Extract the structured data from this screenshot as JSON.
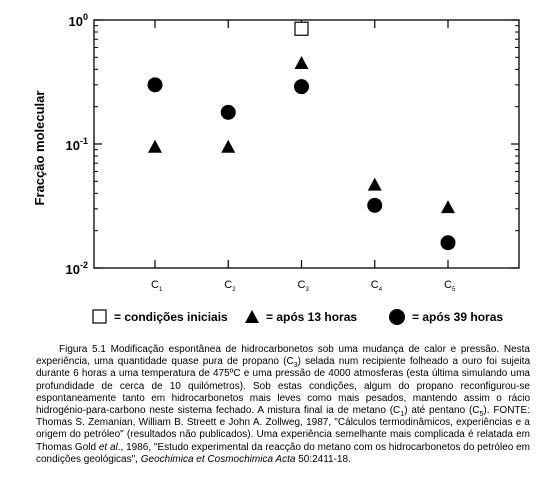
{
  "chart_data": {
    "type": "scatter",
    "title": "",
    "xlabel": "",
    "ylabel": "Fracção molecular",
    "y_scale": "log",
    "ylim": [
      0.01,
      1
    ],
    "y_ticks": [
      {
        "base": "10",
        "exp": "0",
        "value": 1
      },
      {
        "base": "10",
        "exp": "-1",
        "value": 0.1
      },
      {
        "base": "10",
        "exp": "-2",
        "value": 0.01
      }
    ],
    "categories": [
      "C1",
      "C2",
      "C3",
      "C4",
      "C5"
    ],
    "category_labels": [
      {
        "main": "C",
        "sub": "1"
      },
      {
        "main": "C",
        "sub": "2"
      },
      {
        "main": "C",
        "sub": "3"
      },
      {
        "main": "C",
        "sub": "4"
      },
      {
        "main": "C",
        "sub": "5"
      }
    ],
    "grid": false,
    "legend_position": "bottom",
    "series": [
      {
        "name": "= condições iniciais",
        "marker": "open-square",
        "values": [
          null,
          null,
          0.85,
          null,
          null
        ]
      },
      {
        "name": "= após 13 horas",
        "marker": "triangle",
        "values": [
          0.095,
          0.095,
          0.45,
          0.047,
          0.031
        ]
      },
      {
        "name": "= após 39 horas",
        "marker": "circle",
        "values": [
          0.3,
          0.18,
          0.29,
          0.032,
          0.016
        ]
      }
    ]
  },
  "caption": {
    "p1_part1": "Figura 5.1 Modificação espontânea de hidrocarbonetos sob uma mudança de calor e pressão. Nesta experiência, uma quantidade quase pura de propano (C",
    "p1_sub1": "3",
    "p1_part2": ") selada num recipiente folheado a ouro foi sujeita durante 6 horas a uma temperatura de 475ºC e uma pressão de 4000 atmosferas (esta última simulando uma profundidade de cerca de 10 quilómetros). Sob estas condições, algum do propano reconfigurou-se espontaneamente tanto em hidrocarbonetos mais leves como mais pesados, mantendo assim o rácio hidrogénio-para-carbono neste sistema fechado. A mistura final ia de metano (C",
    "p1_sub2": "1",
    "p1_part3": ") até pentano (C",
    "p1_sub3": "5",
    "p1_part4": "). FONTE: Thomas S. Zemanian, William B. Streett e John A. Zollweg, 1987, \"Cálculos termodinâmicos, experiências e a origem do petróleo\" (resultados não publicados). Uma experiência semelhante mais complicada é relatada em Thomas Gold ",
    "p1_etal": "et al",
    "p1_part5": "., 1986, \"Estudo experimental da reacção do metano com os hidrocarbonetos do petróleo em condições geológicas\", ",
    "p1_journal": "Geochimica et Cosmochimica Acta",
    "p1_part6": " 50:2411-18."
  }
}
